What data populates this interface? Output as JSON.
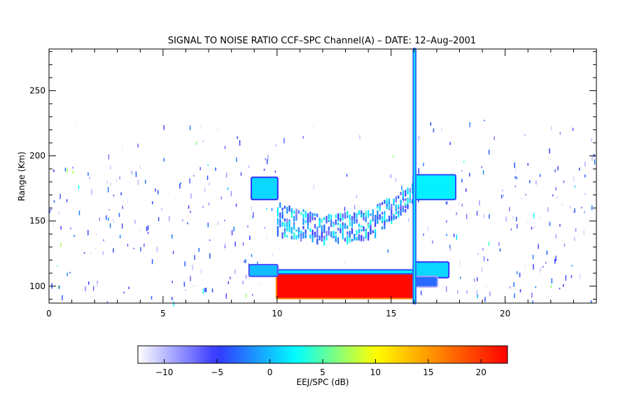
{
  "chart_data": {
    "type": "heatmap",
    "title": "SIGNAL TO NOISE RATIO CCF–SPC Channel(A) – DATE: 12–Aug–2001",
    "xlabel": "",
    "ylabel": "Range (Km)",
    "xlim": [
      0,
      24
    ],
    "ylim": [
      87,
      282
    ],
    "xticks": [
      "0",
      "5",
      "10",
      "15",
      "20"
    ],
    "xtick_values": [
      0,
      5,
      10,
      15,
      20
    ],
    "yticks": [
      "100",
      "150",
      "200",
      "250"
    ],
    "ytick_values": [
      100,
      150,
      200,
      250
    ],
    "grid": false,
    "colorbar": {
      "label": "EEJ/SPC (dB)",
      "range": [
        -12.5,
        22.5
      ],
      "ticks": [
        "−10",
        "−5",
        "0",
        "5",
        "10",
        "15",
        "20"
      ],
      "tick_values": [
        -10,
        -5,
        0,
        5,
        10,
        15,
        20
      ],
      "colormap": [
        "#ffffff",
        "#3535ff",
        "#00ffff",
        "#ffff00",
        "#ff0000"
      ]
    },
    "regions": [
      {
        "name": "EEJ red core",
        "x": [
          10.0,
          16.0
        ],
        "y": [
          91,
          110
        ],
        "snr_db": 22
      },
      {
        "name": "EEJ upper edge",
        "x": [
          10.0,
          16.0
        ],
        "y": [
          110,
          112
        ],
        "snr_db": 2
      },
      {
        "name": "150 km echo arc",
        "x": [
          10.0,
          16.0
        ],
        "y_min": [
          140,
          135,
          137,
          165
        ],
        "y_max": [
          165,
          155,
          160,
          180
        ],
        "snr_db": 0
      },
      {
        "name": "Pre-EEJ 175 km patch",
        "x": [
          8.9,
          10.0
        ],
        "y": [
          167,
          183
        ],
        "snr_db": 1
      },
      {
        "name": "Pre-EEJ 112 km patch",
        "x": [
          8.8,
          10.0
        ],
        "y": [
          108,
          116
        ],
        "snr_db": 0
      },
      {
        "name": "Post-EEJ 175 km patch",
        "x": [
          16.0,
          17.8
        ],
        "y": [
          167,
          185
        ],
        "snr_db": 2
      },
      {
        "name": "Post-EEJ 110 km patch",
        "x": [
          16.0,
          17.5
        ],
        "y": [
          107,
          118
        ],
        "snr_db": 1
      },
      {
        "name": "Post-EEJ 100 km patch",
        "x": [
          16.0,
          17.0
        ],
        "y": [
          100,
          107
        ],
        "snr_db": -3
      },
      {
        "name": "Spike at 16 h",
        "x": [
          16.0,
          16.05
        ],
        "y": [
          87,
          282
        ],
        "snr_db": 3
      }
    ]
  }
}
